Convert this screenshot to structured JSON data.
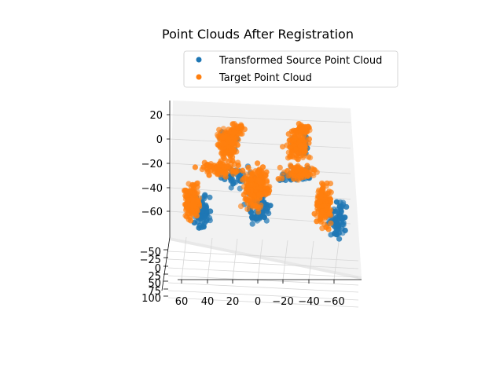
{
  "chart_data": {
    "type": "scatter",
    "projection": "3d",
    "title": "Point Clouds After Registration",
    "legend_placement": "top-right",
    "grid": true,
    "axes": {
      "x": {
        "ticks": [
          60,
          40,
          20,
          0,
          -20,
          -40,
          -60
        ],
        "tick_labels": [
          "60",
          "40",
          "20",
          "0",
          "−20",
          "−40",
          "−60"
        ],
        "range": [
          75,
          -75
        ]
      },
      "y": {
        "ticks": [
          -50,
          -25,
          0,
          25,
          50,
          75,
          100
        ],
        "tick_labels": [
          "−50",
          "−25",
          "0",
          "25",
          "50",
          "75",
          "100"
        ],
        "range": [
          -60,
          105
        ]
      },
      "z": {
        "ticks": [
          20,
          0,
          -20,
          -40,
          -60
        ],
        "tick_labels": [
          "20",
          "0",
          "−20",
          "−40",
          "−60"
        ],
        "range": [
          -80,
          30
        ]
      }
    },
    "series": [
      {
        "name": "Transformed Source Point Cloud",
        "color": "#1f77b4",
        "marker": "circle"
      },
      {
        "name": "Target Point Cloud",
        "color": "#ff7f0e",
        "marker": "circle"
      }
    ]
  }
}
